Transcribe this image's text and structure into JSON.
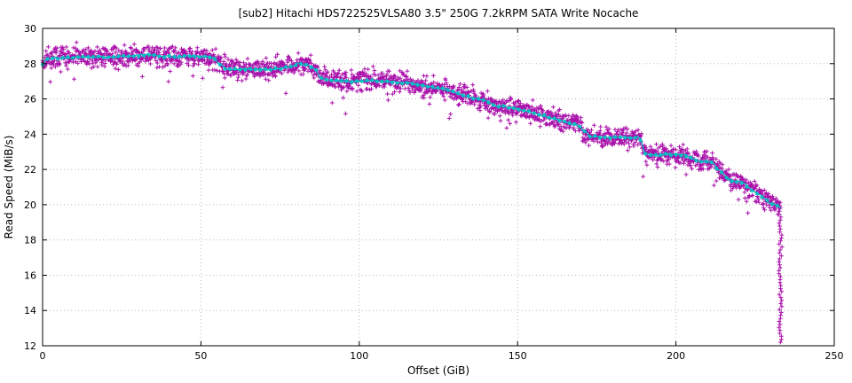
{
  "chart_data": {
    "type": "scatter",
    "title": "[sub2] Hitachi HDS722525VLSA80 3.5\" 250G 7.2kRPM SATA Write Nocache",
    "xlabel": "Offset (GiB)",
    "ylabel": "Read Speed (MiB/s)",
    "xlim": [
      0,
      250
    ],
    "ylim": [
      12,
      30
    ],
    "xticks": [
      0,
      50,
      100,
      150,
      200,
      250
    ],
    "yticks": [
      12,
      14,
      16,
      18,
      20,
      22,
      24,
      26,
      28,
      30
    ],
    "grid": true,
    "legend": "none",
    "colors": {
      "scatter": "#aa10aa",
      "line": "#00c2c2",
      "grid": "#b8b8b8",
      "axis": "#000000",
      "background": "#ffffff"
    },
    "series": [
      {
        "name": "read-speed-samples",
        "type": "scatter",
        "marker": "plus",
        "color": "#aa10aa"
      },
      {
        "name": "moving-average",
        "type": "line",
        "marker": "star",
        "color": "#00c2c2"
      }
    ],
    "mean_curve": [
      [
        0,
        27.9
      ],
      [
        1,
        28.25
      ],
      [
        5,
        28.3
      ],
      [
        10,
        28.35
      ],
      [
        15,
        28.4
      ],
      [
        20,
        28.35
      ],
      [
        25,
        28.4
      ],
      [
        30,
        28.45
      ],
      [
        34,
        28.5
      ],
      [
        38,
        28.4
      ],
      [
        42,
        28.4
      ],
      [
        46,
        28.45
      ],
      [
        50,
        28.4
      ],
      [
        54,
        28.3
      ],
      [
        56,
        27.95
      ],
      [
        58,
        27.7
      ],
      [
        62,
        27.65
      ],
      [
        66,
        27.7
      ],
      [
        70,
        27.65
      ],
      [
        74,
        27.7
      ],
      [
        78,
        27.85
      ],
      [
        81,
        28.0
      ],
      [
        84,
        27.9
      ],
      [
        86,
        27.7
      ],
      [
        88,
        27.15
      ],
      [
        92,
        27.05
      ],
      [
        96,
        27.0
      ],
      [
        100,
        27.0
      ],
      [
        104,
        27.05
      ],
      [
        108,
        27.0
      ],
      [
        112,
        26.95
      ],
      [
        116,
        26.9
      ],
      [
        120,
        26.75
      ],
      [
        124,
        26.65
      ],
      [
        128,
        26.5
      ],
      [
        131,
        26.3
      ],
      [
        134,
        26.1
      ],
      [
        137,
        26.0
      ],
      [
        140,
        25.9
      ],
      [
        142,
        25.65
      ],
      [
        145,
        25.6
      ],
      [
        148,
        25.5
      ],
      [
        151,
        25.35
      ],
      [
        154,
        25.25
      ],
      [
        157,
        25.1
      ],
      [
        160,
        24.95
      ],
      [
        163,
        24.8
      ],
      [
        166,
        24.65
      ],
      [
        169,
        24.5
      ],
      [
        171,
        24.2
      ],
      [
        173,
        23.85
      ],
      [
        176,
        23.85
      ],
      [
        179,
        23.8
      ],
      [
        182,
        23.85
      ],
      [
        185,
        23.8
      ],
      [
        188,
        23.85
      ],
      [
        189,
        23.6
      ],
      [
        190,
        23.0
      ],
      [
        191,
        22.85
      ],
      [
        194,
        22.8
      ],
      [
        197,
        22.85
      ],
      [
        200,
        22.85
      ],
      [
        203,
        22.8
      ],
      [
        205,
        22.6
      ],
      [
        207,
        22.45
      ],
      [
        210,
        22.45
      ],
      [
        212,
        22.35
      ],
      [
        213,
        22.0
      ],
      [
        215,
        21.75
      ],
      [
        216,
        21.5
      ],
      [
        218,
        21.3
      ],
      [
        220,
        21.35
      ],
      [
        222,
        21.1
      ],
      [
        224,
        20.85
      ],
      [
        226,
        20.6
      ],
      [
        228,
        20.35
      ],
      [
        230,
        20.1
      ],
      [
        232,
        19.95
      ],
      [
        233,
        19.85
      ]
    ],
    "scatter": {
      "count": 2200,
      "x_max": 233,
      "noise_std": 0.28,
      "outlier_prob": 0.022,
      "outlier_extra": 1.6,
      "seed": 42
    },
    "tail_drop": {
      "x": 233,
      "x_jitter": 0.5,
      "y_min": 12.2,
      "y_max": 19.8,
      "count": 46
    }
  }
}
